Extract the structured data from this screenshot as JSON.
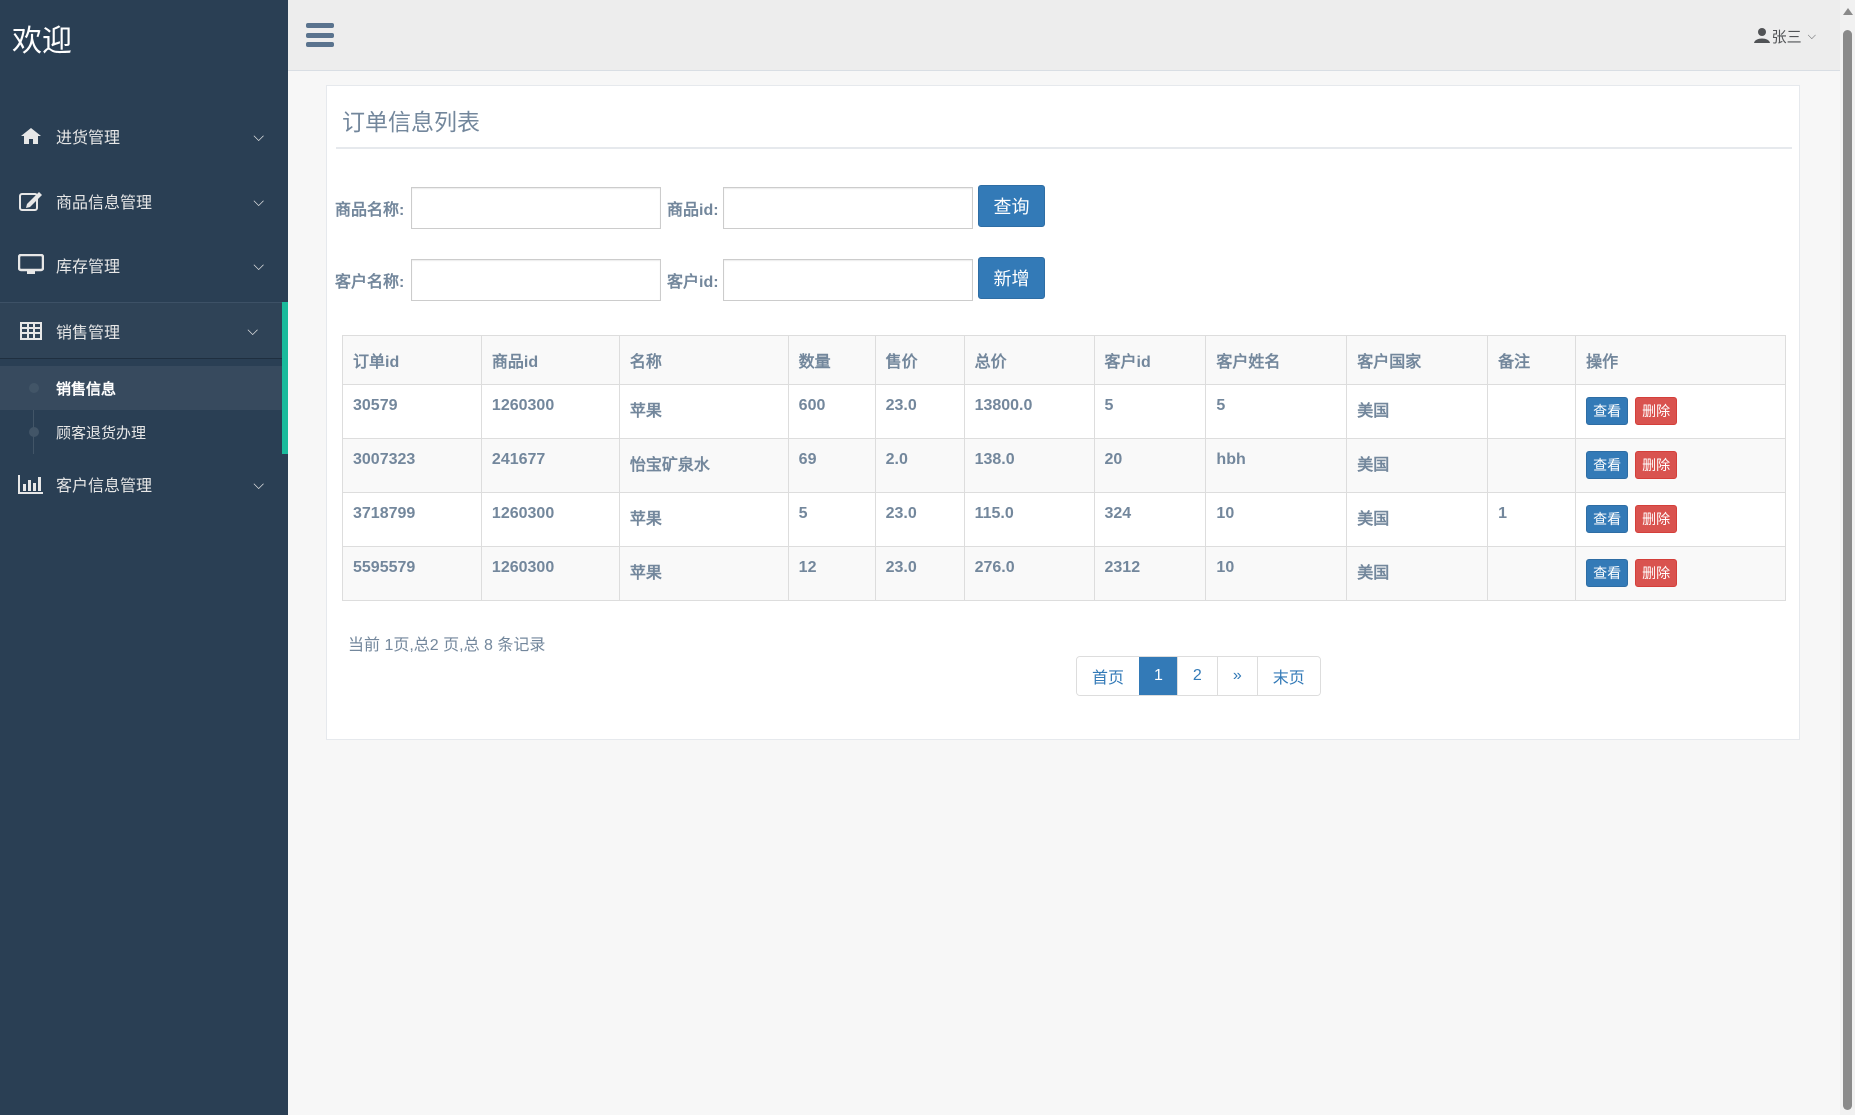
{
  "sidebar": {
    "brand": "欢迎",
    "items": [
      {
        "label": "进货管理",
        "icon": "home-icon"
      },
      {
        "label": "商品信息管理",
        "icon": "edit-icon"
      },
      {
        "label": "库存管理",
        "icon": "desktop-icon"
      },
      {
        "label": "销售管理",
        "icon": "table-icon",
        "expanded": true,
        "children": [
          {
            "label": "销售信息",
            "current": true
          },
          {
            "label": "顾客退货办理"
          }
        ]
      },
      {
        "label": "客户信息管理",
        "icon": "bar-chart-icon"
      }
    ]
  },
  "header": {
    "user": "张三"
  },
  "panel": {
    "title": "订单信息列表",
    "form": {
      "product_name_label": "商品名称:",
      "product_id_label": "商品id:",
      "query_button": "查询",
      "customer_name_label": "客户名称:",
      "customer_id_label": "客户id:",
      "add_button": "新增"
    },
    "table": {
      "headers": [
        "订单id",
        "商品id",
        "名称",
        "数量",
        "售价",
        "总价",
        "客户id",
        "客户姓名",
        "客户国家",
        "备注",
        "操作"
      ],
      "rows": [
        [
          "30579",
          "1260300",
          "苹果",
          "600",
          "23.0",
          "13800.0",
          "5",
          "5",
          "美国",
          ""
        ],
        [
          "3007323",
          "241677",
          "怡宝矿泉水",
          "69",
          "2.0",
          "138.0",
          "20",
          "hbh",
          "美国",
          ""
        ],
        [
          "3718799",
          "1260300",
          "苹果",
          "5",
          "23.0",
          "115.0",
          "324",
          "10",
          "美国",
          "1"
        ],
        [
          "5595579",
          "1260300",
          "苹果",
          "12",
          "23.0",
          "276.0",
          "2312",
          "10",
          "美国",
          ""
        ]
      ],
      "view_label": "查看",
      "delete_label": "删除"
    },
    "page_info": "当前 1页,总2 页,总 8 条记录",
    "pagination": {
      "first": "首页",
      "pages": [
        "1",
        "2"
      ],
      "current": "1",
      "next": "»",
      "last": "末页"
    }
  },
  "colors": {
    "sidebar": "#2A3F54",
    "accent": "#1ABB9C",
    "primary": "#337AB7",
    "danger": "#D9534F"
  }
}
